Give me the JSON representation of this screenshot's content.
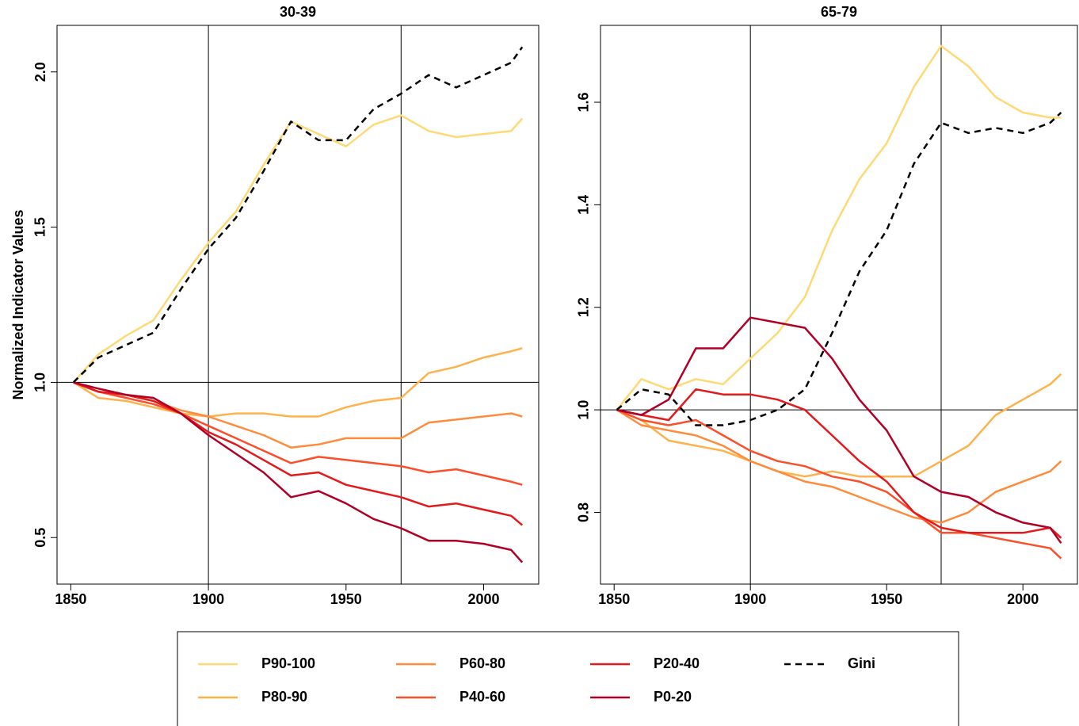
{
  "chart_data": [
    {
      "type": "line",
      "title": "30-39",
      "ylabel": "Normalized Indicator Values",
      "x": [
        1851,
        1860,
        1870,
        1880,
        1890,
        1900,
        1910,
        1920,
        1930,
        1940,
        1950,
        1960,
        1970,
        1980,
        1990,
        2000,
        2010,
        2014
      ],
      "xlim": [
        1845,
        2020
      ],
      "xticks": [
        1850,
        1900,
        1950,
        2000
      ],
      "ylim": [
        0.35,
        2.15
      ],
      "yticks": [
        0.5,
        {
          "value": 1,
          "label": "1.0"
        },
        1.5,
        {
          "value": 2,
          "label": "2.0"
        }
      ],
      "vlines": [
        1900,
        1970
      ],
      "hline": 1,
      "series": [
        {
          "name": "P90-100",
          "color": "#fed976",
          "values": [
            1.0,
            1.09,
            1.15,
            1.2,
            1.33,
            1.45,
            1.55,
            1.7,
            1.84,
            1.8,
            1.76,
            1.83,
            1.86,
            1.81,
            1.79,
            1.8,
            1.81,
            1.85
          ]
        },
        {
          "name": "P80-90",
          "color": "#feb24c",
          "values": [
            1.0,
            0.95,
            0.94,
            0.92,
            0.9,
            0.89,
            0.9,
            0.9,
            0.89,
            0.89,
            0.92,
            0.94,
            0.95,
            1.03,
            1.05,
            1.08,
            1.1,
            1.11
          ]
        },
        {
          "name": "P60-80",
          "color": "#fd8d3c",
          "values": [
            1.0,
            0.97,
            0.96,
            0.94,
            0.91,
            0.89,
            0.86,
            0.83,
            0.79,
            0.8,
            0.82,
            0.82,
            0.82,
            0.87,
            0.88,
            0.89,
            0.9,
            0.89
          ]
        },
        {
          "name": "P40-60",
          "color": "#fc4e2a",
          "values": [
            1.0,
            0.97,
            0.95,
            0.93,
            0.9,
            0.86,
            0.82,
            0.78,
            0.74,
            0.76,
            0.75,
            0.74,
            0.73,
            0.71,
            0.72,
            0.7,
            0.68,
            0.67
          ]
        },
        {
          "name": "P20-40",
          "color": "#e31a1c",
          "values": [
            1.0,
            0.97,
            0.96,
            0.94,
            0.9,
            0.84,
            0.8,
            0.75,
            0.7,
            0.71,
            0.67,
            0.65,
            0.63,
            0.6,
            0.61,
            0.59,
            0.57,
            0.54
          ]
        },
        {
          "name": "P0-20",
          "color": "#b10026",
          "values": [
            1.0,
            0.98,
            0.96,
            0.95,
            0.9,
            0.83,
            0.77,
            0.71,
            0.63,
            0.65,
            0.61,
            0.56,
            0.53,
            0.49,
            0.49,
            0.48,
            0.46,
            0.42
          ]
        },
        {
          "name": "Gini",
          "color": "#000000",
          "dashed": true,
          "values": [
            1.0,
            1.08,
            1.12,
            1.16,
            1.3,
            1.43,
            1.53,
            1.68,
            1.84,
            1.78,
            1.78,
            1.88,
            1.93,
            1.99,
            1.95,
            1.99,
            2.03,
            2.08
          ]
        }
      ]
    },
    {
      "type": "line",
      "title": "65-79",
      "x": [
        1851,
        1860,
        1870,
        1880,
        1890,
        1900,
        1910,
        1920,
        1930,
        1940,
        1950,
        1960,
        1970,
        1980,
        1990,
        2000,
        2010,
        2014
      ],
      "xlim": [
        1845,
        2020
      ],
      "xticks": [
        1850,
        1900,
        1950,
        2000
      ],
      "ylim": [
        0.66,
        1.75
      ],
      "yticks": [
        0.8,
        {
          "value": 1,
          "label": "1.0"
        },
        1.2,
        1.4,
        1.6
      ],
      "vlines": [
        1900,
        1970
      ],
      "hline": 1,
      "series": [
        {
          "color": "#fed976",
          "values": [
            1.0,
            1.06,
            1.04,
            1.06,
            1.05,
            1.1,
            1.15,
            1.22,
            1.35,
            1.45,
            1.52,
            1.63,
            1.71,
            1.67,
            1.61,
            1.58,
            1.57,
            1.57
          ]
        },
        {
          "color": "#feb24c",
          "values": [
            1.0,
            0.98,
            0.94,
            0.93,
            0.92,
            0.9,
            0.88,
            0.87,
            0.88,
            0.87,
            0.87,
            0.87,
            0.9,
            0.93,
            0.99,
            1.02,
            1.05,
            1.07
          ]
        },
        {
          "color": "#fd8d3c",
          "values": [
            1.0,
            0.97,
            0.96,
            0.95,
            0.93,
            0.9,
            0.88,
            0.86,
            0.85,
            0.83,
            0.81,
            0.79,
            0.78,
            0.8,
            0.84,
            0.86,
            0.88,
            0.9
          ]
        },
        {
          "color": "#fc4e2a",
          "values": [
            1.0,
            0.98,
            0.97,
            0.98,
            0.95,
            0.92,
            0.9,
            0.89,
            0.87,
            0.86,
            0.84,
            0.8,
            0.76,
            0.76,
            0.75,
            0.74,
            0.73,
            0.71
          ]
        },
        {
          "color": "#e31a1c",
          "values": [
            1.0,
            0.99,
            0.98,
            1.04,
            1.03,
            1.03,
            1.02,
            1.0,
            0.95,
            0.9,
            0.86,
            0.8,
            0.77,
            0.76,
            0.76,
            0.76,
            0.77,
            0.75
          ]
        },
        {
          "color": "#b10026",
          "values": [
            1.0,
            0.99,
            1.02,
            1.12,
            1.12,
            1.18,
            1.17,
            1.16,
            1.1,
            1.02,
            0.96,
            0.87,
            0.84,
            0.83,
            0.8,
            0.78,
            0.77,
            0.74
          ]
        },
        {
          "color": "#000000",
          "dashed": true,
          "values": [
            1.0,
            1.04,
            1.03,
            0.97,
            0.97,
            0.98,
            1.0,
            1.04,
            1.15,
            1.27,
            1.35,
            1.48,
            1.56,
            1.54,
            1.55,
            1.54,
            1.56,
            1.58
          ]
        }
      ]
    }
  ]
}
